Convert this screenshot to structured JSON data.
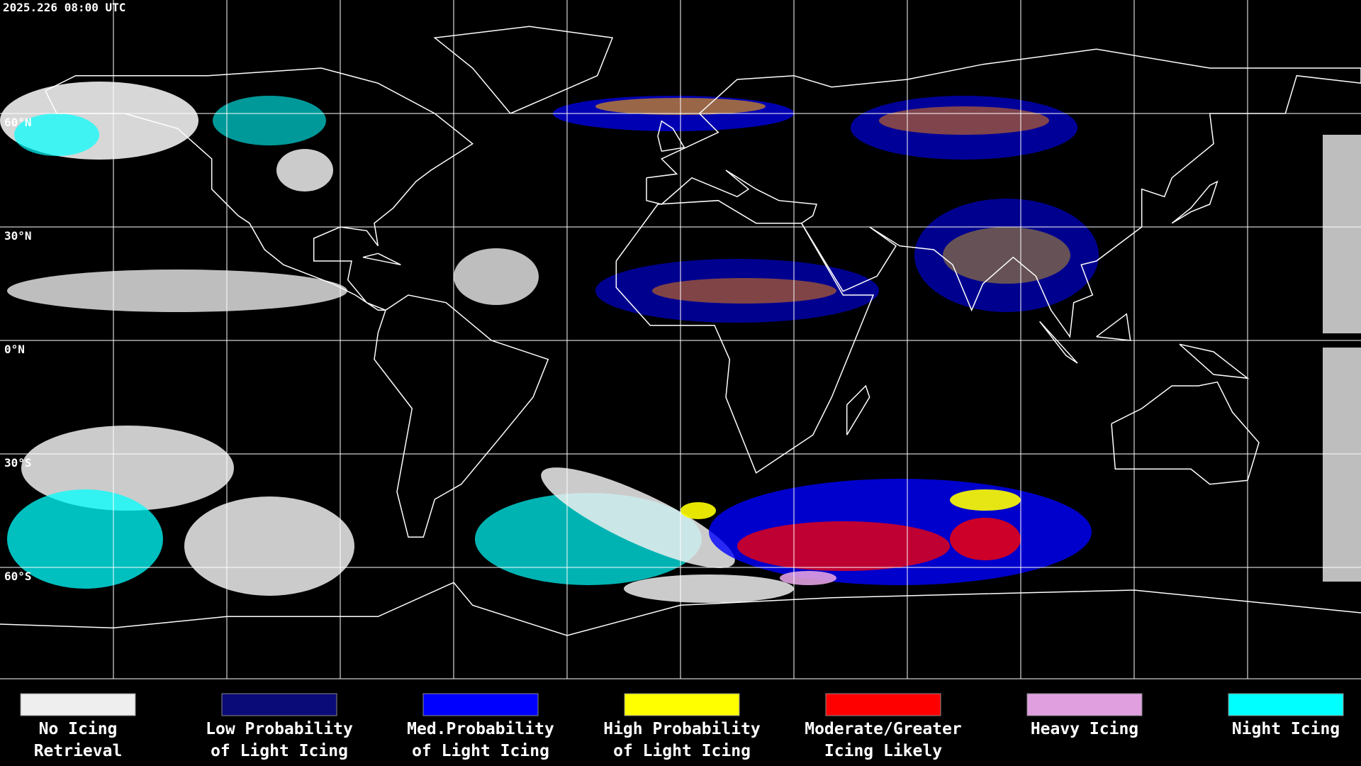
{
  "timestamp": "2025.226 08:00 UTC",
  "latitude_labels": [
    "60°N",
    "30°N",
    "0°N",
    "30°S",
    "60°S"
  ],
  "legend": [
    {
      "label": [
        "No Icing",
        "Retrieval"
      ],
      "color": "#eeeeee"
    },
    {
      "label": [
        "Low Probability",
        "of Light Icing"
      ],
      "color": "#0a0a78"
    },
    {
      "label": [
        "Med.Probability",
        "of Light Icing"
      ],
      "color": "#0000ff"
    },
    {
      "label": [
        "High Probability",
        "of Light Icing"
      ],
      "color": "#ffff00"
    },
    {
      "label": [
        "Moderate/Greater",
        "Icing Likely"
      ],
      "color": "#ff0000"
    },
    {
      "label": [
        "Heavy Icing"
      ],
      "color": "#e0a0e0"
    },
    {
      "label": [
        "Night Icing"
      ],
      "color": "#00ffff"
    }
  ]
}
